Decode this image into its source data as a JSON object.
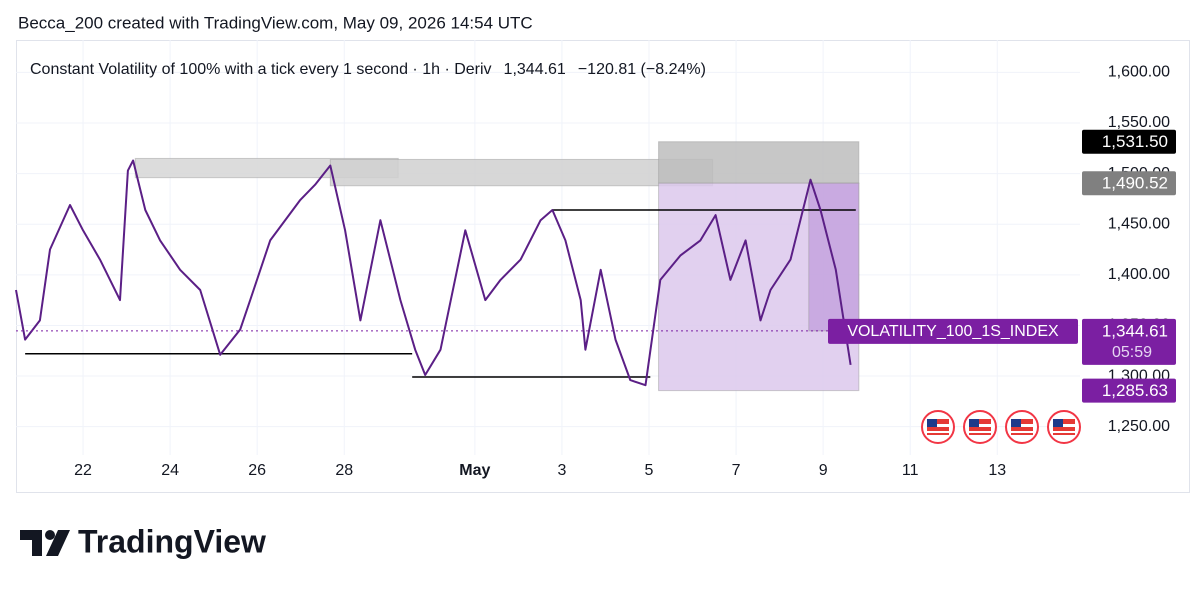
{
  "chart_data": {
    "type": "line",
    "caption": "Becca_200 created with TradingView.com, May 09, 2026 14:54 UTC",
    "title": "Constant Volatility of 100% with a tick every 1 second · 1h · Deriv",
    "last_price": "1,344.61",
    "change": "−120.81 (−8.24%)",
    "countdown": "05:59",
    "brand": "TradingView",
    "x": [
      20.46,
      20.67,
      21.01,
      21.24,
      21.7,
      22.0,
      22.39,
      22.85,
      23.03,
      23.15,
      23.43,
      23.77,
      24.23,
      24.69,
      25.15,
      25.61,
      25.84,
      26.3,
      26.99,
      27.33,
      27.68,
      28.02,
      28.37,
      28.83,
      29.29,
      29.63,
      29.86,
      30.21,
      30.78,
      31.24,
      31.59,
      32.05,
      32.51,
      32.78,
      33.08,
      33.43,
      33.54,
      33.89,
      34.23,
      34.57,
      34.92,
      35.26,
      35.72,
      36.18,
      36.53,
      36.87,
      37.22,
      37.56,
      37.79,
      38.25,
      38.71,
      38.94,
      39.29,
      39.63
    ],
    "series": [
      {
        "name": "VOLATILITY_100_1S_INDEX",
        "color": "#5b1f86",
        "values": [
          1385,
          1336,
          1355,
          1425,
          1469,
          1444,
          1415,
          1375,
          1503,
          1513,
          1464,
          1434,
          1405,
          1385,
          1321,
          1346,
          1375,
          1434,
          1474,
          1489,
          1508,
          1444,
          1355,
          1454,
          1375,
          1326,
          1301,
          1326,
          1444,
          1375,
          1395,
          1415,
          1454,
          1464,
          1434,
          1375,
          1326,
          1405,
          1336,
          1296,
          1291,
          1395,
          1419,
          1434,
          1459,
          1395,
          1434,
          1355,
          1385,
          1415,
          1494,
          1464,
          1405,
          1311
        ]
      }
    ],
    "xlim": [
      20.46,
      44.9
    ],
    "ylim": [
      1222,
      1632
    ],
    "xticks": [
      22,
      24,
      26,
      28,
      {
        "value": 31,
        "label": "May"
      },
      {
        "value": 33,
        "label": "3"
      },
      {
        "value": 35,
        "label": "5"
      },
      {
        "value": 37,
        "label": "7"
      },
      {
        "value": 39,
        "label": "9"
      },
      {
        "value": 41,
        "label": "11"
      },
      {
        "value": 43,
        "label": "13"
      }
    ],
    "yticks": [
      {
        "value": 1250,
        "label": "1,250.00"
      },
      {
        "value": 1300,
        "label": "1,300.00"
      },
      {
        "value": 1350,
        "label": "1,350.00"
      },
      {
        "value": 1400,
        "label": "1,400.00"
      },
      {
        "value": 1450,
        "label": "1,450.00"
      },
      {
        "value": 1500,
        "label": "1,500.00"
      },
      {
        "value": 1550,
        "label": "1,550.00"
      },
      {
        "value": 1600,
        "label": "1,600.00"
      }
    ],
    "grid": true,
    "zones": [
      {
        "x": [
          23.2,
          29.24
        ],
        "y": [
          1496,
          1515
        ],
        "color": "#d6d6d6"
      },
      {
        "x": [
          27.68,
          36.46
        ],
        "y": [
          1488,
          1514
        ],
        "color": "#d0d0d0"
      },
      {
        "x": [
          35.22,
          39.82
        ],
        "y": [
          1490.52,
          1531.5
        ],
        "color": "#bdbdbd"
      },
      {
        "x": [
          35.22,
          39.82
        ],
        "y": [
          1285.63,
          1490.52
        ],
        "color": "#dcc8ec"
      },
      {
        "x": [
          38.67,
          39.82
        ],
        "y": [
          1344.61,
          1490.52
        ],
        "color": "#c4a3de"
      }
    ],
    "levels": [
      {
        "x": [
          20.67,
          29.56
        ],
        "y": 1322
      },
      {
        "x": [
          29.56,
          35.03
        ],
        "y": 1299
      },
      {
        "x": [
          32.78,
          39.75
        ],
        "y": 1464
      }
    ],
    "price_labels": [
      {
        "value": 1531.5,
        "label": "1,531.50",
        "color": "#000000"
      },
      {
        "value": 1490.52,
        "label": "1,490.52",
        "color": "#808080"
      },
      {
        "value": 1344.61,
        "label": "1,344.61",
        "color": "#7b1fa2"
      },
      {
        "value": 1285.63,
        "label": "1,285.63",
        "color": "#7b1fa2"
      }
    ]
  }
}
